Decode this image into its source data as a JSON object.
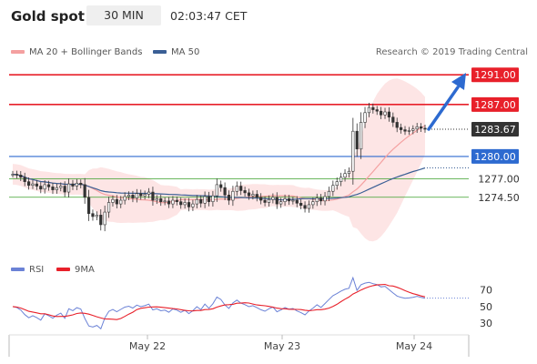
{
  "header": {
    "title": "Gold spot",
    "timeframe": "30 MIN",
    "time": "02:03:47 CET"
  },
  "legend": {
    "ma20": "MA 20 + Bollinger Bands",
    "ma50": "MA 50",
    "credit": "Research © 2019 Trading Central",
    "rsi": "RSI",
    "ma9": "9MA"
  },
  "colors": {
    "red": "#e8202a",
    "blue": "#2d6ad0",
    "navy": "#3a5f95",
    "green": "#3aa02a",
    "dark": "#333333",
    "candle_up": "#ffffff",
    "candle_down": "#333333",
    "band": "#fcdcdc",
    "ma20": "#f4a0a0",
    "rsi": "#6b82d6"
  },
  "chart_data": [
    {
      "type": "candlestick",
      "price_range": [
        1266.5,
        1292.5
      ],
      "levels": [
        {
          "label": "1291.00",
          "value": 1291.0,
          "kind": "resistance"
        },
        {
          "label": "1287.00",
          "value": 1287.0,
          "kind": "resistance"
        },
        {
          "label": "1283.67",
          "value": 1283.67,
          "kind": "last"
        },
        {
          "label": "1280.00",
          "value": 1280.0,
          "kind": "pivot"
        },
        {
          "label": "1277.00",
          "value": 1277.0,
          "kind": "support"
        },
        {
          "label": "1274.50",
          "value": 1274.5,
          "kind": "support"
        }
      ],
      "x_labels": [
        "May 22",
        "May 23",
        "May 24"
      ],
      "series": [
        {
          "name": "MA 20 + Bollinger Bands"
        },
        {
          "name": "MA 50"
        }
      ],
      "close": [
        1277.6,
        1277.5,
        1277.2,
        1276.6,
        1276.1,
        1276.3,
        1276.0,
        1275.6,
        1276.2,
        1275.9,
        1275.5,
        1275.8,
        1276.0,
        1275.2,
        1276.3,
        1276.0,
        1276.4,
        1276.2,
        1274.5,
        1272.3,
        1271.9,
        1272.1,
        1270.8,
        1272.5,
        1273.8,
        1274.2,
        1273.6,
        1274.1,
        1274.6,
        1274.8,
        1274.4,
        1275.0,
        1274.7,
        1274.9,
        1275.2,
        1274.1,
        1274.3,
        1273.9,
        1274.0,
        1273.6,
        1274.1,
        1273.9,
        1273.5,
        1273.8,
        1273.2,
        1273.6,
        1274.2,
        1273.7,
        1274.6,
        1273.9,
        1274.7,
        1276.2,
        1275.8,
        1274.8,
        1274.1,
        1275.3,
        1276.0,
        1275.4,
        1275.1,
        1274.7,
        1274.9,
        1274.5,
        1274.1,
        1273.8,
        1274.2,
        1274.5,
        1273.6,
        1273.9,
        1274.3,
        1274.0,
        1274.1,
        1273.7,
        1273.4,
        1273.0,
        1273.5,
        1273.9,
        1274.4,
        1274.0,
        1274.6,
        1275.3,
        1276.1,
        1276.6,
        1277.2,
        1277.7,
        1278.0,
        1283.4,
        1281.0,
        1284.6,
        1285.9,
        1286.6,
        1286.3,
        1286.1,
        1285.6,
        1286.0,
        1285.3,
        1284.6,
        1283.9,
        1283.6,
        1283.4,
        1283.5,
        1283.7,
        1284.0,
        1283.8,
        1283.67
      ],
      "rsi": {
        "ticks": [
          70,
          50,
          30
        ],
        "range": [
          18,
          84
        ]
      }
    }
  ]
}
